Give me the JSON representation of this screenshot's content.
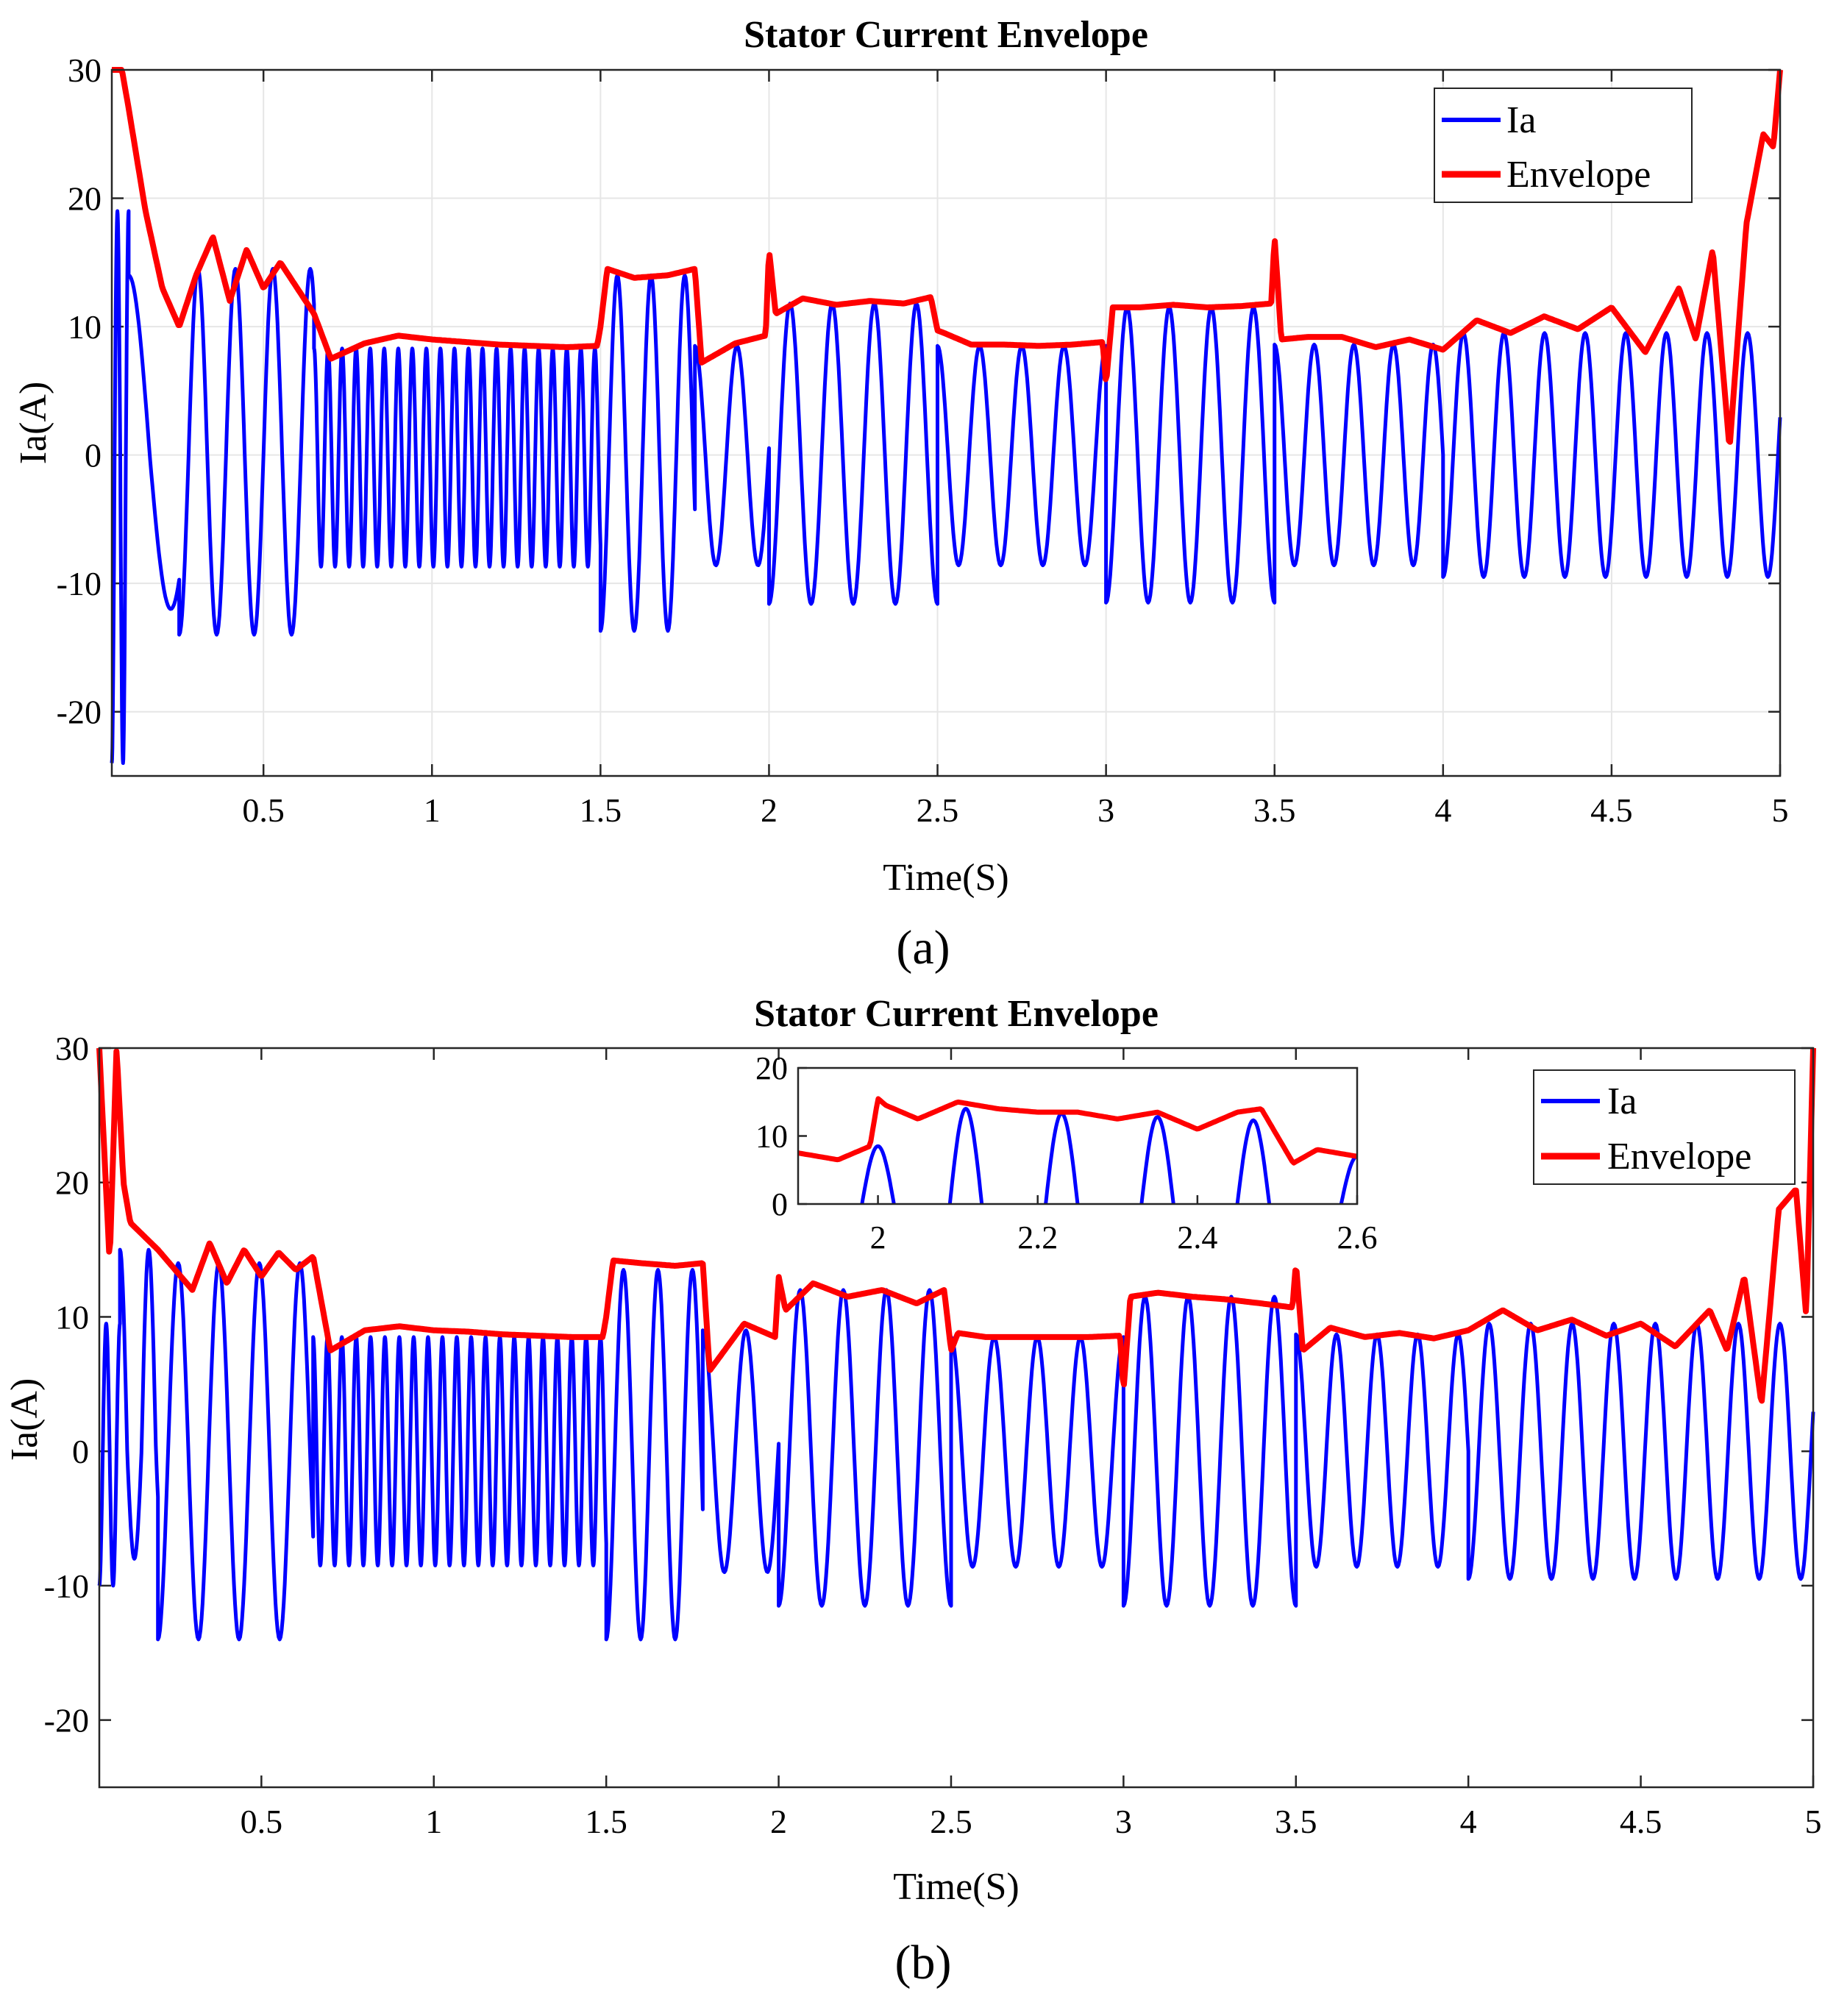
{
  "chart_data": [
    {
      "type": "line",
      "panel_label": "(a)",
      "title": "Stator Current Envelope",
      "xlabel": "Time(S)",
      "ylabel": "Ia(A)",
      "xlim": [
        0.05,
        5
      ],
      "ylim": [
        -25,
        30
      ],
      "xticks": [
        0.5,
        1,
        1.5,
        2,
        2.5,
        3,
        3.5,
        4,
        4.5,
        5
      ],
      "xtick_labels": [
        "0.5",
        "1",
        "1.5",
        "2",
        "2.5",
        "3",
        "3.5",
        "4",
        "4.5",
        "5"
      ],
      "yticks": [
        -20,
        -10,
        0,
        10,
        20,
        30
      ],
      "ytick_labels": [
        "-20",
        "-10",
        "0",
        "10",
        "20",
        "30"
      ],
      "grid": true,
      "legend": {
        "position": "top-right",
        "entries": [
          "Ia",
          "Envelope"
        ]
      },
      "series_colors": {
        "Ia": "#0000ff",
        "Envelope": "#ff0000"
      },
      "segments": [
        {
          "t0": 0.05,
          "t1": 0.1,
          "amp_pos": 19,
          "amp_neg": -24,
          "freq": 30
        },
        {
          "t0": 0.1,
          "t1": 0.25,
          "amp_pos": 14,
          "amp_neg": -12,
          "freq": 4
        },
        {
          "t0": 0.25,
          "t1": 0.65,
          "amp_pos": 14.5,
          "amp_neg": -14,
          "freq": 9
        },
        {
          "t0": 0.65,
          "t1": 1.5,
          "amp_pos": 8.3,
          "amp_neg": -8.7,
          "freq": 24
        },
        {
          "t0": 1.5,
          "t1": 1.78,
          "amp_pos": 14,
          "amp_neg": -13.7,
          "freq": 10
        },
        {
          "t0": 1.78,
          "t1": 2.0,
          "amp_pos": 8.5,
          "amp_neg": -8.6,
          "freq": 8
        },
        {
          "t0": 2.0,
          "t1": 2.5,
          "amp_pos": 11.8,
          "amp_neg": -11.6,
          "freq": 8
        },
        {
          "t0": 2.5,
          "t1": 3.0,
          "amp_pos": 8.5,
          "amp_neg": -8.6,
          "freq": 8
        },
        {
          "t0": 3.0,
          "t1": 3.5,
          "amp_pos": 11.5,
          "amp_neg": -11.5,
          "freq": 8
        },
        {
          "t0": 3.5,
          "t1": 4.0,
          "amp_pos": 8.6,
          "amp_neg": -8.6,
          "freq": 8.5
        },
        {
          "t0": 4.0,
          "t1": 5.0,
          "amp_pos": 9.5,
          "amp_neg": -9.5,
          "freq": 8.3
        }
      ],
      "envelope": {
        "x": [
          0.05,
          0.08,
          0.1,
          0.15,
          0.2,
          0.25,
          0.3,
          0.35,
          0.4,
          0.45,
          0.5,
          0.55,
          0.6,
          0.65,
          0.7,
          0.8,
          0.9,
          1.0,
          1.1,
          1.2,
          1.3,
          1.4,
          1.49,
          1.5,
          1.52,
          1.6,
          1.7,
          1.78,
          1.8,
          1.9,
          1.99,
          2.0,
          2.02,
          2.1,
          2.2,
          2.3,
          2.4,
          2.48,
          2.5,
          2.52,
          2.6,
          2.7,
          2.8,
          2.9,
          2.99,
          3.0,
          3.02,
          3.1,
          3.2,
          3.3,
          3.4,
          3.49,
          3.5,
          3.52,
          3.6,
          3.7,
          3.8,
          3.9,
          4.0,
          4.1,
          4.2,
          4.3,
          4.4,
          4.5,
          4.6,
          4.7,
          4.75,
          4.8,
          4.85,
          4.9,
          4.95,
          4.98,
          5.0
        ],
        "y": [
          30,
          30,
          27,
          19,
          13,
          10,
          14,
          17,
          12,
          16,
          13,
          15,
          13,
          11,
          7.5,
          8.7,
          9.3,
          9.0,
          8.8,
          8.6,
          8.5,
          8.4,
          8.5,
          10,
          14.5,
          13.8,
          14.0,
          14.5,
          7.2,
          8.7,
          9.3,
          16,
          11,
          12.2,
          11.7,
          12.0,
          11.8,
          12.3,
          9.7,
          9.5,
          8.6,
          8.6,
          8.5,
          8.6,
          8.8,
          5.5,
          11.5,
          11.5,
          11.7,
          11.5,
          11.6,
          11.8,
          17,
          9.0,
          9.2,
          9.2,
          8.4,
          9.0,
          8.2,
          10.5,
          9.5,
          10.8,
          9.8,
          11.5,
          8.0,
          13.0,
          9.0,
          16.0,
          0.5,
          18.0,
          25.0,
          24.0,
          30.0
        ]
      }
    },
    {
      "type": "line",
      "panel_label": "(b)",
      "title": "Stator Current Envelope",
      "xlabel": "Time(S)",
      "ylabel": "Ia(A)",
      "xlim": [
        0.03,
        5
      ],
      "ylim": [
        -25,
        30
      ],
      "xticks": [
        0.5,
        1,
        1.5,
        2,
        2.5,
        3,
        3.5,
        4,
        4.5,
        5
      ],
      "xtick_labels": [
        "0.5",
        "1",
        "1.5",
        "2",
        "2.5",
        "3",
        "3.5",
        "4",
        "4.5",
        "5"
      ],
      "yticks": [
        -20,
        -10,
        0,
        10,
        20,
        30
      ],
      "ytick_labels": [
        "-20",
        "-10",
        "0",
        "10",
        "20",
        "30"
      ],
      "grid": false,
      "legend": {
        "position": "top-right",
        "entries": [
          "Ia",
          "Envelope"
        ]
      },
      "series_colors": {
        "Ia": "#0000ff",
        "Envelope": "#ff0000"
      },
      "segments": [
        {
          "t0": 0.03,
          "t1": 0.09,
          "amp_pos": 9.5,
          "amp_neg": -10,
          "freq": 25
        },
        {
          "t0": 0.09,
          "t1": 0.2,
          "amp_pos": 15,
          "amp_neg": -8,
          "freq": 12
        },
        {
          "t0": 0.2,
          "t1": 0.65,
          "amp_pos": 14,
          "amp_neg": -14,
          "freq": 8.5
        },
        {
          "t0": 0.65,
          "t1": 1.5,
          "amp_pos": 8.5,
          "amp_neg": -8.5,
          "freq": 24
        },
        {
          "t0": 1.5,
          "t1": 1.78,
          "amp_pos": 13.5,
          "amp_neg": -14,
          "freq": 10
        },
        {
          "t0": 1.78,
          "t1": 2.0,
          "amp_pos": 9,
          "amp_neg": -9,
          "freq": 8
        },
        {
          "t0": 2.0,
          "t1": 2.5,
          "amp_pos": 12,
          "amp_neg": -11.5,
          "freq": 8
        },
        {
          "t0": 2.5,
          "t1": 3.0,
          "amp_pos": 8.5,
          "amp_neg": -8.6,
          "freq": 8
        },
        {
          "t0": 3.0,
          "t1": 3.5,
          "amp_pos": 11.5,
          "amp_neg": -11.5,
          "freq": 8
        },
        {
          "t0": 3.5,
          "t1": 4.0,
          "amp_pos": 8.7,
          "amp_neg": -8.6,
          "freq": 8.5
        },
        {
          "t0": 4.0,
          "t1": 5.0,
          "amp_pos": 9.5,
          "amp_neg": -9.5,
          "freq": 8.3
        }
      ],
      "envelope": {
        "x": [
          0.03,
          0.06,
          0.08,
          0.1,
          0.12,
          0.2,
          0.3,
          0.35,
          0.4,
          0.45,
          0.5,
          0.55,
          0.6,
          0.65,
          0.7,
          0.8,
          0.9,
          1.0,
          1.1,
          1.2,
          1.3,
          1.4,
          1.49,
          1.5,
          1.52,
          1.6,
          1.7,
          1.78,
          1.8,
          1.9,
          1.99,
          2.0,
          2.02,
          2.1,
          2.2,
          2.3,
          2.4,
          2.48,
          2.5,
          2.52,
          2.6,
          2.7,
          2.8,
          2.9,
          2.99,
          3.0,
          3.02,
          3.1,
          3.2,
          3.3,
          3.4,
          3.49,
          3.5,
          3.52,
          3.6,
          3.7,
          3.8,
          3.9,
          4.0,
          4.1,
          4.2,
          4.3,
          4.4,
          4.5,
          4.6,
          4.7,
          4.75,
          4.8,
          4.85,
          4.9,
          4.95,
          4.98,
          5.0
        ],
        "y": [
          30,
          14,
          30,
          20,
          17,
          15,
          12,
          15.5,
          12.5,
          15,
          13,
          14.8,
          13.5,
          14.5,
          7.5,
          9.0,
          9.3,
          9.0,
          8.9,
          8.7,
          8.6,
          8.5,
          8.5,
          10,
          14.2,
          14.0,
          13.8,
          14.0,
          6.0,
          9.5,
          8.5,
          13,
          10.5,
          12.5,
          11.5,
          12.0,
          11.0,
          12.0,
          7.5,
          8.8,
          8.5,
          8.5,
          8.5,
          8.5,
          8.6,
          4.5,
          11.5,
          11.8,
          11.5,
          11.3,
          11.0,
          10.7,
          14,
          7.5,
          9.2,
          8.5,
          8.8,
          8.4,
          9.0,
          10.5,
          9.0,
          9.8,
          8.6,
          9.5,
          7.8,
          10.5,
          7.5,
          13.0,
          3.5,
          18.0,
          19.5,
          10.0,
          30.0
        ]
      },
      "inset": {
        "type": "line",
        "xlim": [
          1.9,
          2.6
        ],
        "ylim": [
          0,
          20
        ],
        "xticks": [
          2,
          2.2,
          2.4,
          2.6
        ],
        "xtick_labels": [
          "2",
          "2.2",
          "2.4",
          "2.6"
        ],
        "yticks": [
          0,
          10,
          20
        ],
        "ytick_labels": [
          "0",
          "10",
          "20"
        ],
        "envelope": {
          "x": [
            1.9,
            1.95,
            1.99,
            2.0,
            2.01,
            2.05,
            2.1,
            2.15,
            2.2,
            2.25,
            2.3,
            2.35,
            2.4,
            2.45,
            2.48,
            2.5,
            2.52,
            2.55,
            2.6
          ],
          "y": [
            7.5,
            6.5,
            8.5,
            15.5,
            14.5,
            12.5,
            15,
            14,
            13.5,
            13.5,
            12.5,
            13.5,
            11,
            13.5,
            14,
            10,
            6,
            8,
            7
          ]
        },
        "peaks": [
          {
            "t": 2.0,
            "peak": 8.5
          },
          {
            "t": 2.11,
            "peak": 14
          },
          {
            "t": 2.23,
            "peak": 13.3
          },
          {
            "t": 2.35,
            "peak": 12.8
          },
          {
            "t": 2.47,
            "peak": 12.3
          },
          {
            "t": 2.6,
            "peak": 7
          }
        ]
      }
    }
  ]
}
